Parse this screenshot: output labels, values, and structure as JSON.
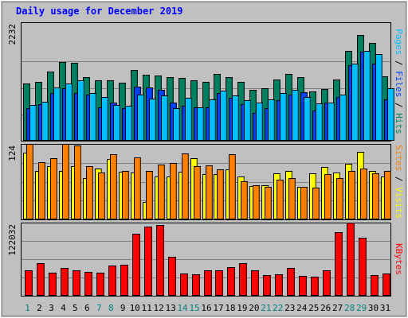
{
  "chart_data": [
    {
      "type": "bar",
      "title": "Daily usage for December 2019",
      "ylabel_parts": [
        {
          "text": "Pages",
          "color": "#00c0ff"
        },
        {
          "text": " / ",
          "color": "#000000"
        },
        {
          "text": "Files",
          "color": "#0040ff"
        },
        {
          "text": " / ",
          "color": "#000000"
        },
        {
          "text": "Hits",
          "color": "#008060"
        }
      ],
      "ymax_label": "2232",
      "ylim": [
        0,
        2232
      ],
      "categories": [
        "1",
        "2",
        "3",
        "4",
        "5",
        "6",
        "7",
        "8",
        "9",
        "10",
        "11",
        "12",
        "13",
        "14",
        "15",
        "16",
        "17",
        "18",
        "19",
        "20",
        "21",
        "22",
        "23",
        "24",
        "25",
        "26",
        "27",
        "28",
        "29",
        "30",
        "31"
      ],
      "series": [
        {
          "name": "Hits",
          "color": "#008060",
          "values": [
            1200,
            1240,
            1460,
            1660,
            1650,
            1350,
            1280,
            1280,
            1220,
            1490,
            1400,
            1380,
            1350,
            1320,
            1270,
            1240,
            1410,
            1340,
            1250,
            1070,
            1110,
            1300,
            1410,
            1340,
            1040,
            1090,
            1290,
            1890,
            2232,
            2070,
            1360
          ]
        },
        {
          "name": "Files",
          "color": "#0040ff",
          "values": [
            690,
            770,
            1000,
            1100,
            1000,
            980,
            700,
            800,
            680,
            1140,
            1120,
            1080,
            800,
            740,
            710,
            700,
            1000,
            900,
            780,
            580,
            680,
            850,
            980,
            1030,
            640,
            800,
            920,
            1600,
            1880,
            1620,
            880
          ]
        },
        {
          "name": "Pages",
          "color": "#00c0ff",
          "values": [
            760,
            830,
            1120,
            1200,
            1280,
            1010,
            920,
            760,
            740,
            980,
            890,
            960,
            680,
            900,
            710,
            870,
            1050,
            960,
            850,
            800,
            880,
            1000,
            1070,
            920,
            790,
            800,
            980,
            1620,
            1890,
            1830,
            1110
          ]
        }
      ]
    },
    {
      "type": "bar",
      "ylabel_parts": [
        {
          "text": "Sites",
          "color": "#ff8000"
        },
        {
          "text": " / ",
          "color": "#000000"
        },
        {
          "text": "Visits",
          "color": "#ffff00"
        }
      ],
      "ymax_label": "124",
      "ylim": [
        0,
        124
      ],
      "categories": [
        "1",
        "2",
        "3",
        "4",
        "5",
        "6",
        "7",
        "8",
        "9",
        "10",
        "11",
        "12",
        "13",
        "14",
        "15",
        "16",
        "17",
        "18",
        "19",
        "20",
        "21",
        "22",
        "23",
        "24",
        "25",
        "26",
        "27",
        "28",
        "29",
        "30",
        "31"
      ],
      "series": [
        {
          "name": "Visits",
          "color": "#ffff00",
          "values": [
            110,
            80,
            87,
            80,
            88,
            68,
            84,
            99,
            78,
            77,
            29,
            70,
            70,
            78,
            100,
            74,
            75,
            82,
            70,
            55,
            56,
            76,
            79,
            54,
            76,
            86,
            77,
            91,
            111,
            80,
            71
          ]
        },
        {
          "name": "Sites",
          "color": "#ff8000",
          "values": [
            124,
            94,
            100,
            124,
            122,
            87,
            77,
            107,
            80,
            102,
            80,
            90,
            93,
            108,
            87,
            89,
            82,
            107,
            63,
            56,
            54,
            65,
            68,
            54,
            52,
            74,
            68,
            79,
            84,
            76,
            80
          ]
        }
      ]
    },
    {
      "type": "bar",
      "ylabel_parts": [
        {
          "text": "KBytes",
          "color": "#ff0000"
        }
      ],
      "ymax_label": "122032",
      "ylim": [
        0,
        122032
      ],
      "categories": [
        "1",
        "2",
        "3",
        "4",
        "5",
        "6",
        "7",
        "8",
        "9",
        "10",
        "11",
        "12",
        "13",
        "14",
        "15",
        "16",
        "17",
        "18",
        "19",
        "20",
        "21",
        "22",
        "23",
        "24",
        "25",
        "26",
        "27",
        "28",
        "29",
        "30",
        "31"
      ],
      "series": [
        {
          "name": "KBytes",
          "color": "#ff0000",
          "values": [
            42000,
            54000,
            39000,
            47000,
            43000,
            40000,
            38000,
            50000,
            52000,
            104000,
            116000,
            118000,
            65000,
            37000,
            36000,
            42000,
            42000,
            48000,
            54000,
            43000,
            35000,
            36000,
            46000,
            33000,
            32000,
            43000,
            106000,
            122032,
            97000,
            35000,
            37000
          ]
        }
      ]
    }
  ],
  "colors": {
    "grid": "#808080",
    "plot_bg": "#c0c0c0",
    "day_weekday": "#008040",
    "day_weekend": "#008080"
  }
}
